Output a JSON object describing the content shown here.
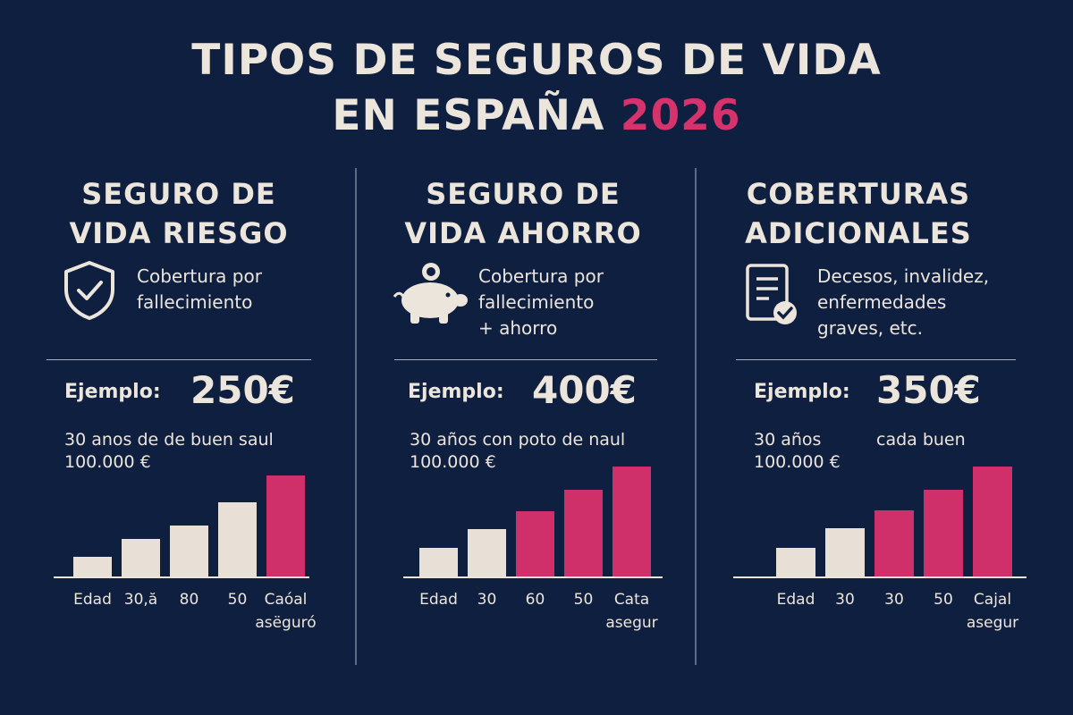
{
  "title": {
    "line1": "TIPOS DE SEGUROS DE VIDA",
    "line2_prefix": "EN ESPAÑA",
    "line2_year": "2026"
  },
  "colors": {
    "background": "#0f1f3f",
    "cream": "#e8e0d7",
    "accent": "#d0306a"
  },
  "columns": [
    {
      "heading1": "SEGURO DE",
      "heading2": "VIDA RIESGO",
      "icon": "shield-check-icon",
      "desc": [
        "Cobertura por",
        "fallecimiento"
      ],
      "example_label": "Ejemplo:",
      "price": "250€",
      "sub": [
        "30 anos de de buen saul",
        "100.000 €"
      ],
      "bars": {
        "labels": [
          "Edad",
          "30,ă",
          "80",
          "50",
          "Caóal asëguró"
        ],
        "values": [
          23,
          43,
          58,
          84,
          114
        ],
        "highlight": [
          false,
          false,
          false,
          false,
          true
        ]
      }
    },
    {
      "heading1": "SEGURO DE",
      "heading2": "VIDA AHORRO",
      "icon": "piggy-bank-icon",
      "desc": [
        "Cobertura por",
        "fallecimiento",
        "+ ahorro"
      ],
      "example_label": "Ejemplo:",
      "price": "400€",
      "sub": [
        "30 años con poto de naul",
        "100.000 €"
      ],
      "bars": {
        "labels": [
          "Edad",
          "30",
          "60",
          "50",
          "Cata asegur"
        ],
        "values": [
          33,
          54,
          74,
          98,
          124
        ],
        "highlight": [
          false,
          false,
          true,
          true,
          true
        ]
      }
    },
    {
      "heading1": "COBERTURAS",
      "heading2": "ADICIONALES",
      "icon": "document-check-icon",
      "desc": [
        "Decesos, invalidez,",
        "enfermedades",
        "graves, etc."
      ],
      "example_label": "Ejemplo:",
      "price": "350€",
      "sub": [
        "30 años",
        "100.000 €"
      ],
      "sub_extra": "cada buen",
      "bars": {
        "labels": [
          "Edad",
          "30",
          "30",
          "50",
          "Cajal asegur"
        ],
        "values": [
          33,
          55,
          75,
          98,
          124
        ],
        "highlight": [
          false,
          false,
          true,
          true,
          true
        ]
      }
    }
  ]
}
